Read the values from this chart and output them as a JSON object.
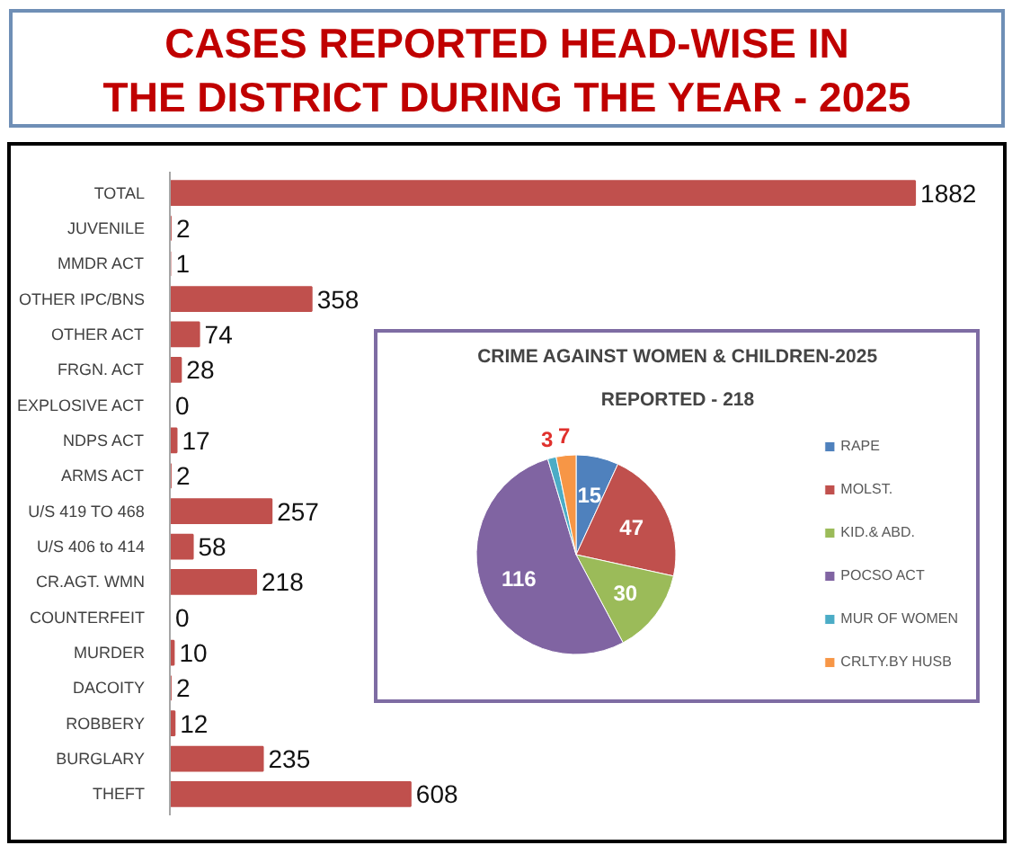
{
  "chart_data": [
    {
      "type": "bar",
      "title": "CASES REPORTED HEAD-WISE IN\nTHE DISTRICT DURING THE YEAR - 2025",
      "orientation": "horizontal",
      "categories": [
        "TOTAL",
        "JUVENILE",
        "MMDR ACT",
        "OTHER IPC/BNS",
        "OTHER ACT",
        "FRGN. ACT",
        "EXPLOSIVE ACT",
        "NDPS ACT",
        "ARMS ACT",
        "U/S 419 TO 468",
        "U/S 406 to 414",
        "CR.AGT. WMN",
        "COUNTERFEIT",
        "MURDER",
        "DACOITY",
        "ROBBERY",
        "BURGLARY",
        "THEFT"
      ],
      "values": [
        1882,
        2,
        1,
        358,
        74,
        28,
        0,
        17,
        2,
        257,
        58,
        218,
        0,
        10,
        2,
        12,
        235,
        608
      ],
      "color": "#c0504d",
      "data_labels": true,
      "tick_labels": "y"
    },
    {
      "type": "pie",
      "title": "CRIME AGAINST WOMEN & CHILDREN-2025",
      "subtitle": "REPORTED - 218",
      "categories": [
        "RAPE",
        "MOLST.",
        "KID.& ABD.",
        "POCSO ACT",
        "MUR OF WOMEN",
        "CRLTY.BY HUSB"
      ],
      "values": [
        15,
        47,
        30,
        116,
        3,
        7
      ],
      "colors": [
        "#4f81bd",
        "#c0504d",
        "#9bbb59",
        "#8064a2",
        "#4bacc6",
        "#f79646"
      ],
      "data_labels": true,
      "legend": "right"
    }
  ]
}
